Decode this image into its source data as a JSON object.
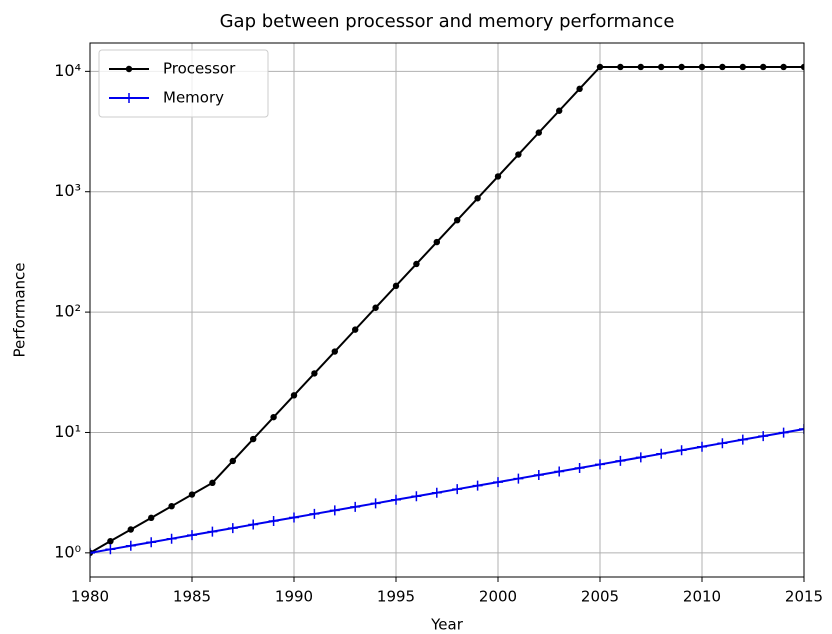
{
  "chart_data": {
    "type": "line",
    "title": "Gap between processor and memory performance",
    "xlabel": "Year",
    "ylabel": "Performance",
    "x": [
      1980,
      1981,
      1982,
      1983,
      1984,
      1985,
      1986,
      1987,
      1988,
      1989,
      1990,
      1991,
      1992,
      1993,
      1994,
      1995,
      1996,
      1997,
      1998,
      1999,
      2000,
      2001,
      2002,
      2003,
      2004,
      2005,
      2006,
      2007,
      2008,
      2009,
      2010,
      2011,
      2012,
      2013,
      2014,
      2015
    ],
    "series": [
      {
        "name": "Processor",
        "color": "#000000",
        "marker": "circle",
        "values": [
          1,
          1.25,
          1.563,
          1.953,
          2.441,
          3.052,
          3.815,
          5.799,
          8.814,
          13.4,
          20.36,
          30.95,
          47.05,
          71.51,
          108.7,
          165.2,
          251.1,
          381.7,
          580.2,
          881.9,
          1340,
          2037,
          3097,
          4707,
          7155,
          10875,
          10875,
          10875,
          10875,
          10875,
          10875,
          10875,
          10875,
          10875,
          10875,
          10875
        ]
      },
      {
        "name": "Memory",
        "color": "#0000ee",
        "marker": "plus",
        "values": [
          1,
          1.07,
          1.145,
          1.225,
          1.311,
          1.403,
          1.501,
          1.606,
          1.718,
          1.838,
          1.967,
          2.105,
          2.252,
          2.41,
          2.579,
          2.759,
          2.952,
          3.159,
          3.38,
          3.617,
          3.87,
          4.141,
          4.43,
          4.741,
          5.072,
          5.427,
          5.807,
          6.214,
          6.649,
          7.114,
          7.612,
          8.145,
          8.715,
          9.325,
          9.978,
          10.677
        ]
      }
    ],
    "xlim": [
      1980,
      2015
    ],
    "xticks": [
      1980,
      1985,
      1990,
      1995,
      2000,
      2005,
      2010,
      2015
    ],
    "ylim": [
      0.63,
      17200
    ],
    "ylog": true,
    "yticks": [
      {
        "value": 1,
        "label": "10⁰"
      },
      {
        "value": 10,
        "label": "10¹"
      },
      {
        "value": 100,
        "label": "10²"
      },
      {
        "value": 1000,
        "label": "10³"
      },
      {
        "value": 10000,
        "label": "10⁴"
      }
    ],
    "grid": true,
    "legend": "upper left"
  }
}
